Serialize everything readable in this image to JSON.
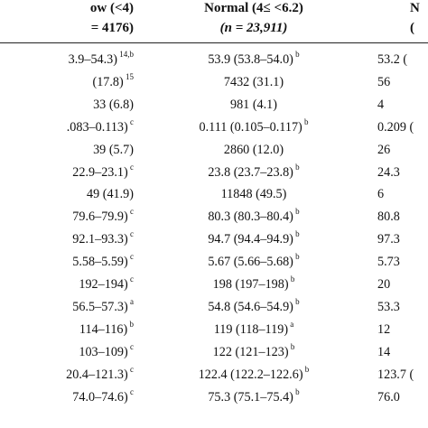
{
  "header": {
    "col1_title": "ow (<4)",
    "col1_n": "= 4176)",
    "col2_title": "Normal (4≤ <6.2)",
    "col2_n_prefix": "(",
    "col2_n_italic": "n",
    "col2_n_rest": " = 23,911)",
    "col3_title": "N",
    "col3_n": "("
  },
  "rows": [
    {
      "c1": "3.9–54.3)",
      "c1s": "14,b",
      "c2": "53.9 (53.8–54.0)",
      "c2s": "b",
      "c3": "53.2",
      "c3b": "("
    },
    {
      "c1": "(17.8)",
      "c1s": "15",
      "c2": "7432 (31.1)",
      "c2s": "",
      "c3": "56",
      "c3b": ""
    },
    {
      "c1": "33 (6.8)",
      "c1s": "",
      "c2": "981 (4.1)",
      "c2s": "",
      "c3": "4",
      "c3b": ""
    },
    {
      "c1": ".083–0.113)",
      "c1s": "c",
      "c2": "0.111 (0.105–0.117)",
      "c2s": "b",
      "c3": "0.209",
      "c3b": "("
    },
    {
      "c1": "39 (5.7)",
      "c1s": "",
      "c2": "2860 (12.0)",
      "c2s": "",
      "c3": "26",
      "c3b": ""
    },
    {
      "c1": "22.9–23.1)",
      "c1s": "c",
      "c2": "23.8 (23.7–23.8)",
      "c2s": "b",
      "c3": "24.3",
      "c3b": ""
    },
    {
      "c1": "49 (41.9)",
      "c1s": "",
      "c2": "11848 (49.5)",
      "c2s": "",
      "c3": "6",
      "c3b": ""
    },
    {
      "c1": "79.6–79.9)",
      "c1s": "c",
      "c2": "80.3 (80.3–80.4)",
      "c2s": "b",
      "c3": "80.8",
      "c3b": ""
    },
    {
      "c1": "92.1–93.3)",
      "c1s": "c",
      "c2": "94.7 (94.4–94.9)",
      "c2s": "b",
      "c3": "97.3",
      "c3b": ""
    },
    {
      "c1": "5.58–5.59)",
      "c1s": "c",
      "c2": "5.67 (5.66–5.68)",
      "c2s": "b",
      "c3": "5.73",
      "c3b": ""
    },
    {
      "c1": "192–194)",
      "c1s": "c",
      "c2": "198 (197–198)",
      "c2s": "b",
      "c3": "20",
      "c3b": ""
    },
    {
      "c1": "56.5–57.3)",
      "c1s": "a",
      "c2": "54.8 (54.6–54.9)",
      "c2s": "b",
      "c3": "53.3",
      "c3b": ""
    },
    {
      "c1": "114–116)",
      "c1s": "b",
      "c2": "119 (118–119)",
      "c2s": "a",
      "c3": "12",
      "c3b": ""
    },
    {
      "c1": "103–109)",
      "c1s": "c",
      "c2": "122 (121–123)",
      "c2s": "b",
      "c3": "14",
      "c3b": ""
    },
    {
      "c1": "20.4–121.3)",
      "c1s": "c",
      "c2": "122.4 (122.2–122.6)",
      "c2s": "b",
      "c3": "123.7",
      "c3b": "("
    },
    {
      "c1": "74.0–74.6)",
      "c1s": "c",
      "c2": "75.3 (75.1–75.4)",
      "c2s": "b",
      "c3": "76.0",
      "c3b": ""
    }
  ]
}
